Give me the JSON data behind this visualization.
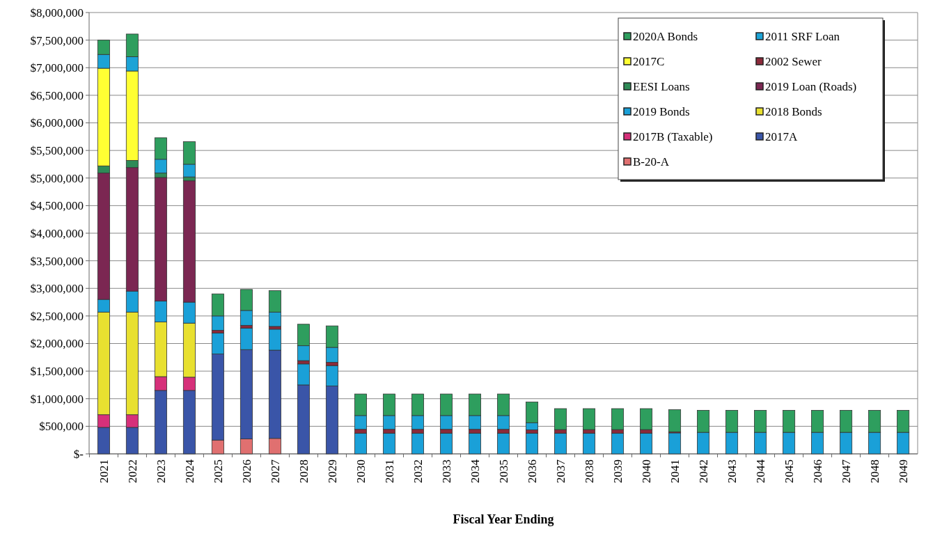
{
  "chart_data": {
    "type": "bar",
    "stacked": true,
    "xlabel": "Fiscal Year Ending",
    "categories": [
      "2021",
      "2022",
      "2023",
      "2024",
      "2025",
      "2026",
      "2027",
      "2028",
      "2029",
      "2030",
      "2031",
      "2032",
      "2033",
      "2034",
      "2035",
      "2036",
      "2037",
      "2038",
      "2039",
      "2040",
      "2041",
      "2042",
      "2043",
      "2044",
      "2045",
      "2046",
      "2047",
      "2048",
      "2049"
    ],
    "ylim": [
      0,
      8000000
    ],
    "yticks": [
      {
        "value": 0,
        "label": "$-"
      },
      {
        "value": 500000,
        "label": "$500,000"
      },
      {
        "value": 1000000,
        "label": "$1,000,000"
      },
      {
        "value": 1500000,
        "label": "$1,500,000"
      },
      {
        "value": 2000000,
        "label": "$2,000,000"
      },
      {
        "value": 2500000,
        "label": "$2,500,000"
      },
      {
        "value": 3000000,
        "label": "$3,000,000"
      },
      {
        "value": 3500000,
        "label": "$3,500,000"
      },
      {
        "value": 4000000,
        "label": "$4,000,000"
      },
      {
        "value": 4500000,
        "label": "$4,500,000"
      },
      {
        "value": 5000000,
        "label": "$5,000,000"
      },
      {
        "value": 5500000,
        "label": "$5,500,000"
      },
      {
        "value": 6000000,
        "label": "$6,000,000"
      },
      {
        "value": 6500000,
        "label": "$6,500,000"
      },
      {
        "value": 7000000,
        "label": "$7,000,000"
      },
      {
        "value": 7500000,
        "label": "$7,500,000"
      },
      {
        "value": 8000000,
        "label": "$8,000,000"
      }
    ],
    "grid": "y",
    "legend": "top right",
    "series": [
      {
        "name": "B-20-A",
        "color": "#e07070",
        "values": [
          null,
          null,
          null,
          null,
          250000,
          270000,
          280000,
          null,
          null,
          null,
          null,
          null,
          null,
          null,
          null,
          null,
          null,
          null,
          null,
          null,
          null,
          null,
          null,
          null,
          null,
          null,
          null,
          null,
          null
        ]
      },
      {
        "name": "2017A",
        "color": "#3a55a8",
        "values": [
          480000,
          480000,
          1150000,
          1150000,
          1560000,
          1620000,
          1600000,
          1250000,
          1230000,
          null,
          null,
          null,
          null,
          null,
          null,
          null,
          null,
          null,
          null,
          null,
          null,
          null,
          null,
          null,
          null,
          null,
          null,
          null,
          null
        ]
      },
      {
        "name": "2017B (Taxable)",
        "color": "#d6307a",
        "values": [
          230000,
          230000,
          250000,
          240000,
          null,
          null,
          null,
          null,
          null,
          null,
          null,
          null,
          null,
          null,
          null,
          null,
          null,
          null,
          null,
          null,
          null,
          null,
          null,
          null,
          null,
          null,
          null,
          null,
          null
        ]
      },
      {
        "name": "2018 Bonds",
        "color": "#e8e030",
        "values": [
          1860000,
          1860000,
          990000,
          980000,
          null,
          null,
          null,
          null,
          null,
          null,
          null,
          null,
          null,
          null,
          null,
          null,
          null,
          null,
          null,
          null,
          null,
          null,
          null,
          null,
          null,
          null,
          null,
          null,
          null
        ]
      },
      {
        "name": "2019 Bonds",
        "color": "#1aa0d8",
        "values": [
          230000,
          380000,
          380000,
          380000,
          380000,
          390000,
          380000,
          380000,
          370000,
          375000,
          375000,
          375000,
          375000,
          375000,
          375000,
          375000,
          375000,
          375000,
          375000,
          375000,
          380000,
          390000,
          390000,
          390000,
          390000,
          390000,
          390000,
          390000,
          390000
        ]
      },
      {
        "name": "2019 Loan (Roads)",
        "color": "#7b2752",
        "values": [
          2290000,
          2240000,
          2240000,
          2200000,
          null,
          null,
          null,
          null,
          null,
          null,
          null,
          null,
          null,
          null,
          null,
          null,
          null,
          null,
          null,
          null,
          null,
          null,
          null,
          null,
          null,
          null,
          null,
          null,
          null
        ]
      },
      {
        "name": "EESI Loans",
        "color": "#2e8b57",
        "values": [
          130000,
          130000,
          80000,
          70000,
          null,
          null,
          null,
          null,
          null,
          null,
          null,
          null,
          null,
          null,
          null,
          null,
          null,
          null,
          null,
          null,
          null,
          null,
          null,
          null,
          null,
          null,
          null,
          null,
          null
        ]
      },
      {
        "name": "2002 Sewer",
        "color": "#8b2a3a",
        "values": [
          null,
          null,
          null,
          null,
          50000,
          50000,
          50000,
          60000,
          60000,
          70000,
          70000,
          70000,
          70000,
          70000,
          70000,
          60000,
          65000,
          65000,
          65000,
          65000,
          20000,
          null,
          null,
          null,
          null,
          null,
          null,
          null,
          null
        ]
      },
      {
        "name": "2017C",
        "color": "#ffff33",
        "values": [
          1770000,
          1620000,
          null,
          null,
          null,
          null,
          null,
          null,
          null,
          null,
          null,
          null,
          null,
          null,
          null,
          null,
          null,
          null,
          null,
          null,
          null,
          null,
          null,
          null,
          null,
          null,
          null,
          null,
          null
        ]
      },
      {
        "name": "2011 SRF Loan",
        "color": "#1ca3d6",
        "values": [
          250000,
          260000,
          250000,
          230000,
          260000,
          270000,
          260000,
          270000,
          270000,
          250000,
          250000,
          250000,
          250000,
          250000,
          250000,
          130000,
          null,
          null,
          null,
          null,
          null,
          null,
          null,
          null,
          null,
          null,
          null,
          null,
          null
        ]
      },
      {
        "name": "2020A Bonds",
        "color": "#2e9e5e",
        "values": [
          260000,
          410000,
          390000,
          410000,
          400000,
          380000,
          390000,
          390000,
          390000,
          390000,
          390000,
          390000,
          390000,
          390000,
          390000,
          375000,
          380000,
          380000,
          380000,
          380000,
          400000,
          400000,
          400000,
          400000,
          400000,
          400000,
          400000,
          400000,
          400000
        ]
      }
    ]
  }
}
